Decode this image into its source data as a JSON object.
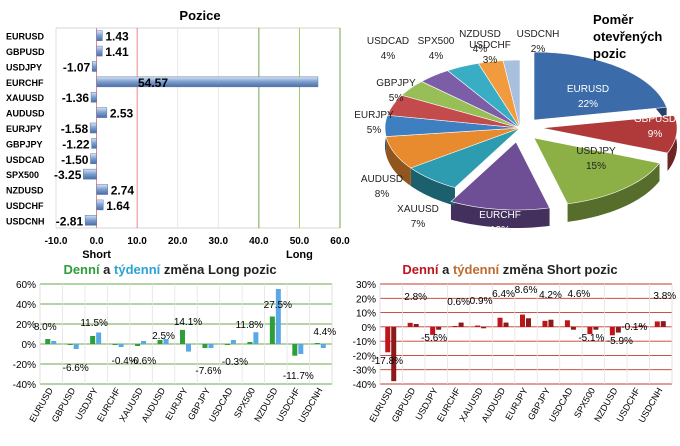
{
  "chart_data": [
    {
      "type": "bar",
      "orientation": "horizontal",
      "title": "Pozice",
      "categories": [
        "EURUSD",
        "GBPUSD",
        "USDJPY",
        "EURCHF",
        "XAUUSD",
        "AUDUSD",
        "EURJPY",
        "GBPJPY",
        "USDCAD",
        "SPX500",
        "NZDUSD",
        "USDCHF",
        "USDCNH"
      ],
      "values": [
        1.43,
        1.41,
        -1.07,
        54.57,
        -1.36,
        2.53,
        -1.58,
        -1.22,
        -1.5,
        -3.25,
        2.74,
        1.64,
        -2.81
      ],
      "value_labels": [
        "1.43",
        "1.41",
        "-1.07",
        "54.57",
        "-1.36",
        "2.53",
        "-1.58",
        "-1.22",
        "-1.50",
        "-3.25",
        "2.74",
        "1.64",
        "-2.81"
      ],
      "xlim": [
        -10,
        60
      ],
      "xticks": [
        "-10.0",
        "0.0",
        "10.0",
        "20.0",
        "30.0",
        "40.0",
        "50.0",
        "60.0"
      ],
      "short_label": "Short",
      "long_label": "Long"
    },
    {
      "type": "pie",
      "title": "Poměr otevřených pozic",
      "title_lines": [
        "Poměr",
        "otevřených",
        "pozic"
      ],
      "slices": [
        {
          "label": "EURUSD",
          "pct": "22%",
          "value": 22,
          "color": "#3B6BA8"
        },
        {
          "label": "GBPUSD",
          "pct": "9%",
          "value": 9,
          "color": "#B03A3A"
        },
        {
          "label": "USDJPY",
          "pct": "15%",
          "value": 15,
          "color": "#8DB046"
        },
        {
          "label": "EURCHF",
          "pct": "12%",
          "value": 12,
          "color": "#6E4E95"
        },
        {
          "label": "XAUUSD",
          "pct": "7%",
          "value": 7,
          "color": "#2D9BB0"
        },
        {
          "label": "AUDUSD",
          "pct": "8%",
          "value": 8,
          "color": "#E88A2E"
        },
        {
          "label": "EURJPY",
          "pct": "5%",
          "value": 5,
          "color": "#3E7FC1"
        },
        {
          "label": "GBPJPY",
          "pct": "5%",
          "value": 5,
          "color": "#C44B4B"
        },
        {
          "label": "USDCAD",
          "pct": "4%",
          "value": 4,
          "color": "#98BE58"
        },
        {
          "label": "SPX500",
          "pct": "4%",
          "value": 4,
          "color": "#7C5EA8"
        },
        {
          "label": "NZDUSD",
          "pct": "4%",
          "value": 4,
          "color": "#38ADC4"
        },
        {
          "label": "USDCHF",
          "pct": "3%",
          "value": 3,
          "color": "#F29B3E"
        },
        {
          "label": "USDCNH",
          "pct": "2%",
          "value": 2,
          "color": "#A9BFDE"
        }
      ]
    },
    {
      "type": "bar",
      "title": "Denní a týdenní změna Long pozic",
      "title_parts": {
        "daily": "Denní",
        "and": " a ",
        "weekly": "týdenní",
        "rest": " změna Long pozic"
      },
      "categories": [
        "EURUSD",
        "GBPUSD",
        "USDJPY",
        "EURCHF",
        "XAUUSD",
        "AUDUSD",
        "EURJPY",
        "GBPJPY",
        "USDCAD",
        "SPX500",
        "NZDUSD",
        "USDCHF",
        "USDCNH"
      ],
      "series": [
        {
          "name": "Denní",
          "color": "#2E9E3A",
          "values": [
            5,
            -1,
            8,
            -1,
            -2,
            4,
            14.1,
            -4,
            -1,
            2,
            27.5,
            -11.7,
            1
          ]
        },
        {
          "name": "týdenní",
          "color": "#5AA9E6",
          "values": [
            3,
            -5,
            11.5,
            -3,
            3,
            5,
            -7.6,
            -4,
            4,
            11.8,
            55,
            -10,
            -4
          ]
        }
      ],
      "annotations": [
        "8.0%",
        "-6.6%",
        "11.5%",
        "-0.4%",
        "-0.6%",
        "2.5%",
        "14.1%",
        "-7.6%",
        "-0.3%",
        "11.8%",
        "27.5%",
        "-11.7%",
        "4.4%"
      ],
      "ylim": [
        -40,
        60
      ],
      "yticks": [
        "60%",
        "40%",
        "20%",
        "0%",
        "-20%",
        "-40%"
      ]
    },
    {
      "type": "bar",
      "title": "Denní a týdenní změna Short pozic",
      "title_parts": {
        "daily": "Denní",
        "and": " a ",
        "weekly": "týdenní",
        "rest": " změna Short pozic"
      },
      "categories": [
        "EURUSD",
        "GBPUSD",
        "USDJPY",
        "EURCHF",
        "XAUUSD",
        "AUDUSD",
        "EURJPY",
        "GBPJPY",
        "USDCAD",
        "SPX500",
        "NZDUSD",
        "USDCHF",
        "USDCNH"
      ],
      "series": [
        {
          "name": "Denní",
          "color": "#C0141B",
          "values": [
            -17.8,
            2.8,
            -5.6,
            0.6,
            0.9,
            6.4,
            8.6,
            4.2,
            4.6,
            -5.1,
            -5.9,
            -0.1,
            3.8
          ]
        },
        {
          "name": "týdenní",
          "color": "#8C1A1A",
          "values": [
            -38,
            2,
            -2,
            3,
            -1,
            3,
            6,
            5,
            -2,
            -2,
            -4,
            1,
            4
          ]
        }
      ],
      "annotations": [
        "-17.8%",
        "2.8%",
        "-5.6%",
        "0.6%",
        "0.9%",
        "6.4%",
        "8.6%",
        "4.2%",
        "4.6%",
        "-5.1%",
        "-5.9%",
        "-0.1%",
        "3.8%"
      ],
      "ylim": [
        -40,
        30
      ],
      "yticks": [
        "30%",
        "20%",
        "10%",
        "0%",
        "-10%",
        "-20%",
        "-30%",
        "-40%"
      ]
    }
  ]
}
